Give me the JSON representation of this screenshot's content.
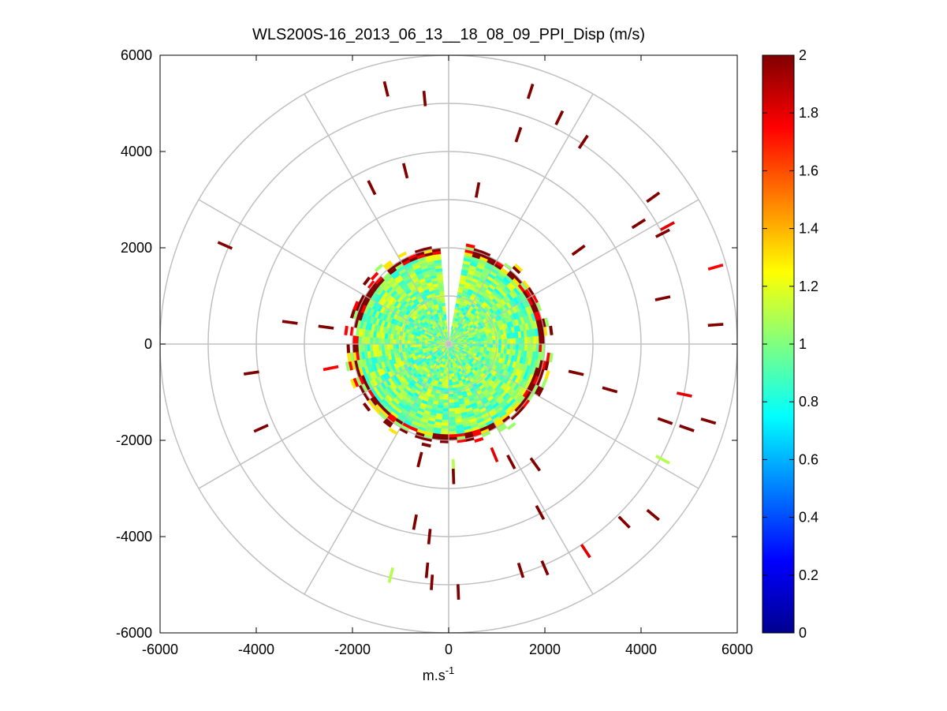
{
  "chart_data": {
    "type": "heatmap",
    "subtype": "polar-ppi",
    "title": "WLS200S-16_2013_06_13__18_08_09_PPI_Disp (m/s)",
    "xlabel": "m.s",
    "xlabel_sup": "-1",
    "ylabel": "",
    "xlim": [
      -6000,
      6000
    ],
    "ylim": [
      -6000,
      6000
    ],
    "xticks": [
      "-6000",
      "-4000",
      "-2000",
      "0",
      "2000",
      "4000",
      "6000"
    ],
    "yticks": [
      "6000",
      "4000",
      "2000",
      "0",
      "-2000",
      "-4000",
      "-6000"
    ],
    "colorbar": {
      "colormap": "jet",
      "range": [
        0,
        2
      ],
      "ticks": [
        "2",
        "1.8",
        "1.6",
        "1.4",
        "1.2",
        "1",
        "0.8",
        "0.6",
        "0.4",
        "0.2",
        "0"
      ]
    },
    "polar_grid": {
      "ring_radii": [
        1000,
        2000,
        3000,
        4000,
        5000,
        6000
      ],
      "spoke_angles_deg": [
        0,
        30,
        60,
        90,
        120,
        150,
        180,
        210,
        240,
        270,
        300,
        330
      ],
      "color": "#c0c0c0"
    },
    "core_region": {
      "radius_max": 2150,
      "value_typical": 1.0,
      "gap_azimuth_deg": [
        -5,
        5
      ],
      "edge_value": 2.0
    },
    "sparse_cells": [
      {
        "x": -1300,
        "y": 5300,
        "v": 2
      },
      {
        "x": -500,
        "y": 5100,
        "v": 2
      },
      {
        "x": 1700,
        "y": 5250,
        "v": 2
      },
      {
        "x": 2300,
        "y": 4700,
        "v": 2
      },
      {
        "x": 2800,
        "y": 4200,
        "v": 2
      },
      {
        "x": 1450,
        "y": 4350,
        "v": 2
      },
      {
        "x": -900,
        "y": 3600,
        "v": 2
      },
      {
        "x": -1600,
        "y": 3250,
        "v": 2
      },
      {
        "x": 600,
        "y": 3200,
        "v": 2
      },
      {
        "x": 4250,
        "y": 3050,
        "v": 2
      },
      {
        "x": 3950,
        "y": 2500,
        "v": 2
      },
      {
        "x": 4550,
        "y": 2450,
        "v": 1.8
      },
      {
        "x": 4450,
        "y": 2300,
        "v": 2
      },
      {
        "x": -4650,
        "y": 2050,
        "v": 2
      },
      {
        "x": 5550,
        "y": 1600,
        "v": 1.75
      },
      {
        "x": 2700,
        "y": 1950,
        "v": 2
      },
      {
        "x": 4450,
        "y": 950,
        "v": 2
      },
      {
        "x": 5550,
        "y": 400,
        "v": 2
      },
      {
        "x": -3300,
        "y": 450,
        "v": 2
      },
      {
        "x": -2550,
        "y": 350,
        "v": 2
      },
      {
        "x": -2450,
        "y": -500,
        "v": 1.75
      },
      {
        "x": -4100,
        "y": -600,
        "v": 2
      },
      {
        "x": -3900,
        "y": -1750,
        "v": 2
      },
      {
        "x": 3350,
        "y": -950,
        "v": 2
      },
      {
        "x": 4900,
        "y": -1050,
        "v": 1.8
      },
      {
        "x": 4500,
        "y": -1600,
        "v": 2
      },
      {
        "x": 4950,
        "y": -1750,
        "v": 2
      },
      {
        "x": 5400,
        "y": -1600,
        "v": 2
      },
      {
        "x": 4450,
        "y": -2400,
        "v": 1.1
      },
      {
        "x": 3650,
        "y": -3700,
        "v": 2
      },
      {
        "x": 4250,
        "y": -3550,
        "v": 2
      },
      {
        "x": 2850,
        "y": -4300,
        "v": 1.8
      },
      {
        "x": 2000,
        "y": -4650,
        "v": 2
      },
      {
        "x": 1900,
        "y": -3500,
        "v": 2
      },
      {
        "x": -700,
        "y": -3700,
        "v": 2
      },
      {
        "x": -400,
        "y": -4000,
        "v": 2
      },
      {
        "x": -1200,
        "y": -4800,
        "v": 1.1
      },
      {
        "x": -450,
        "y": -4700,
        "v": 2
      },
      {
        "x": -350,
        "y": -4950,
        "v": 2
      },
      {
        "x": 200,
        "y": -5150,
        "v": 2
      },
      {
        "x": 1500,
        "y": -4700,
        "v": 2
      },
      {
        "x": -600,
        "y": -2400,
        "v": 2
      },
      {
        "x": 100,
        "y": -2550,
        "v": 1.1
      },
      {
        "x": 100,
        "y": -2750,
        "v": 2
      },
      {
        "x": 950,
        "y": -2300,
        "v": 1.8
      },
      {
        "x": 1300,
        "y": -2450,
        "v": 2
      },
      {
        "x": 1800,
        "y": -2500,
        "v": 2
      },
      {
        "x": 2650,
        "y": -600,
        "v": 2
      }
    ]
  }
}
